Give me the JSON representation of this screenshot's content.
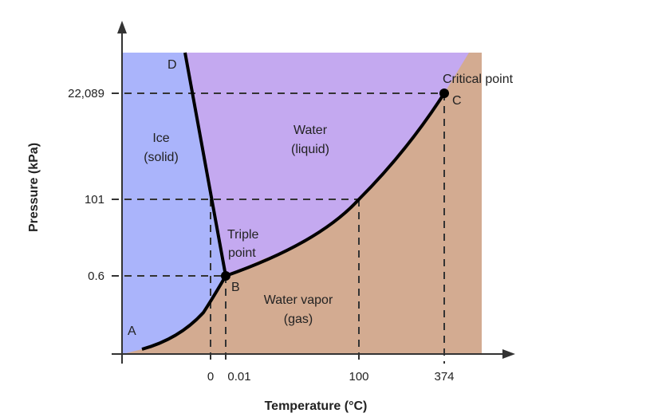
{
  "colors": {
    "solid": "#aab4fb",
    "liquid": "#c4a9f0",
    "gas": "#d3ab91",
    "line": "#000000"
  },
  "axes": {
    "xlabel": "Temperature (°C)",
    "ylabel": "Pressure (kPa)"
  },
  "x_ticks": [
    "0",
    "0.01",
    "100",
    "374"
  ],
  "y_ticks": [
    "22,089",
    "101",
    "0.6"
  ],
  "regions": {
    "solid": {
      "line1": "Ice",
      "line2": "(solid)"
    },
    "liquid": {
      "line1": "Water",
      "line2": "(liquid)"
    },
    "gas": {
      "line1": "Water vapor",
      "line2": "(gas)"
    }
  },
  "points": {
    "a": "A",
    "b": "B",
    "c": "C",
    "d": "D"
  },
  "annotations": {
    "triple1": "Triple",
    "triple2": "point",
    "critical": "Critical point"
  }
}
